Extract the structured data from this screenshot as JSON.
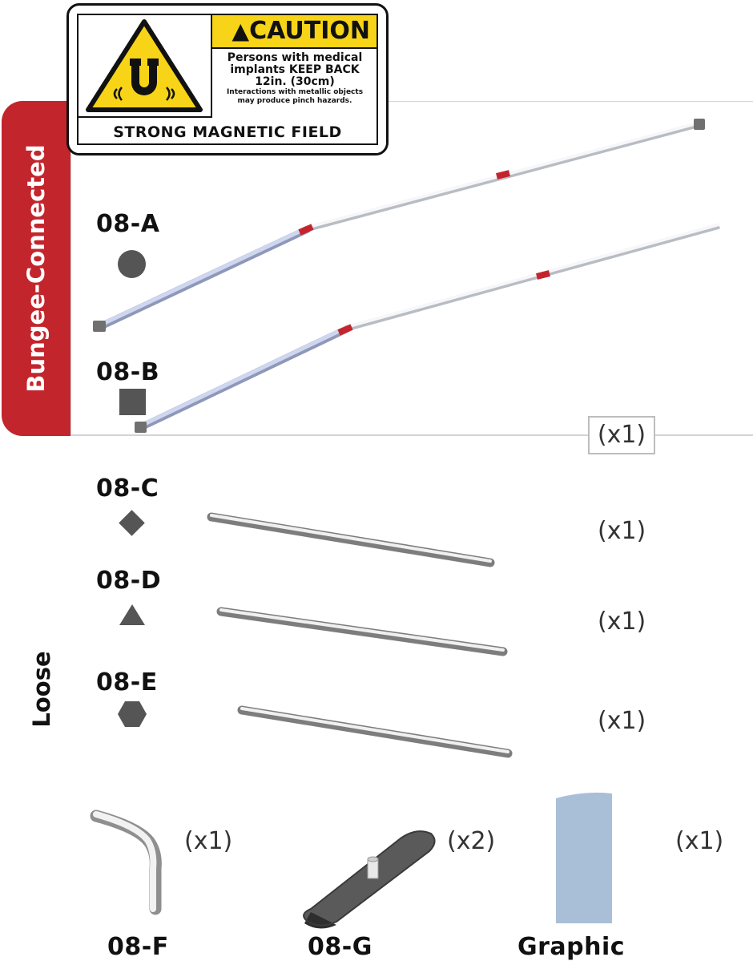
{
  "warning_label": {
    "heading": "CAUTION",
    "line1": "Persons with medical",
    "line2": "implants KEEP BACK",
    "line3": "12in. (30cm)",
    "line4": "Interactions with metallic objects",
    "line5": "may produce pinch hazards.",
    "footer": "STRONG MAGNETIC FIELD",
    "icon": "magnet-hazard-icon",
    "colors": {
      "yellow": "#f7d417",
      "black": "#111111"
    }
  },
  "sections": {
    "bungee": "Bungee-Connected",
    "loose": "Loose"
  },
  "parts": [
    {
      "code": "08-A",
      "symbol": "circle"
    },
    {
      "code": "08-B",
      "symbol": "square"
    },
    {
      "code": "08-C",
      "symbol": "diamond"
    },
    {
      "code": "08-D",
      "symbol": "triangle"
    },
    {
      "code": "08-E",
      "symbol": "hexagon"
    },
    {
      "code": "08-F"
    },
    {
      "code": "08-G"
    },
    {
      "code": "Graphic"
    }
  ],
  "quantities": {
    "bungee_set": "(x1)",
    "c": "(x1)",
    "d": "(x1)",
    "e": "(x1)",
    "f": "(x1)",
    "g": "(x2)",
    "graphic": "(x1)"
  },
  "colors": {
    "accent_red": "#c3252d",
    "symbol_gray": "#555555",
    "graphic_panel": "#a9bfd8"
  }
}
